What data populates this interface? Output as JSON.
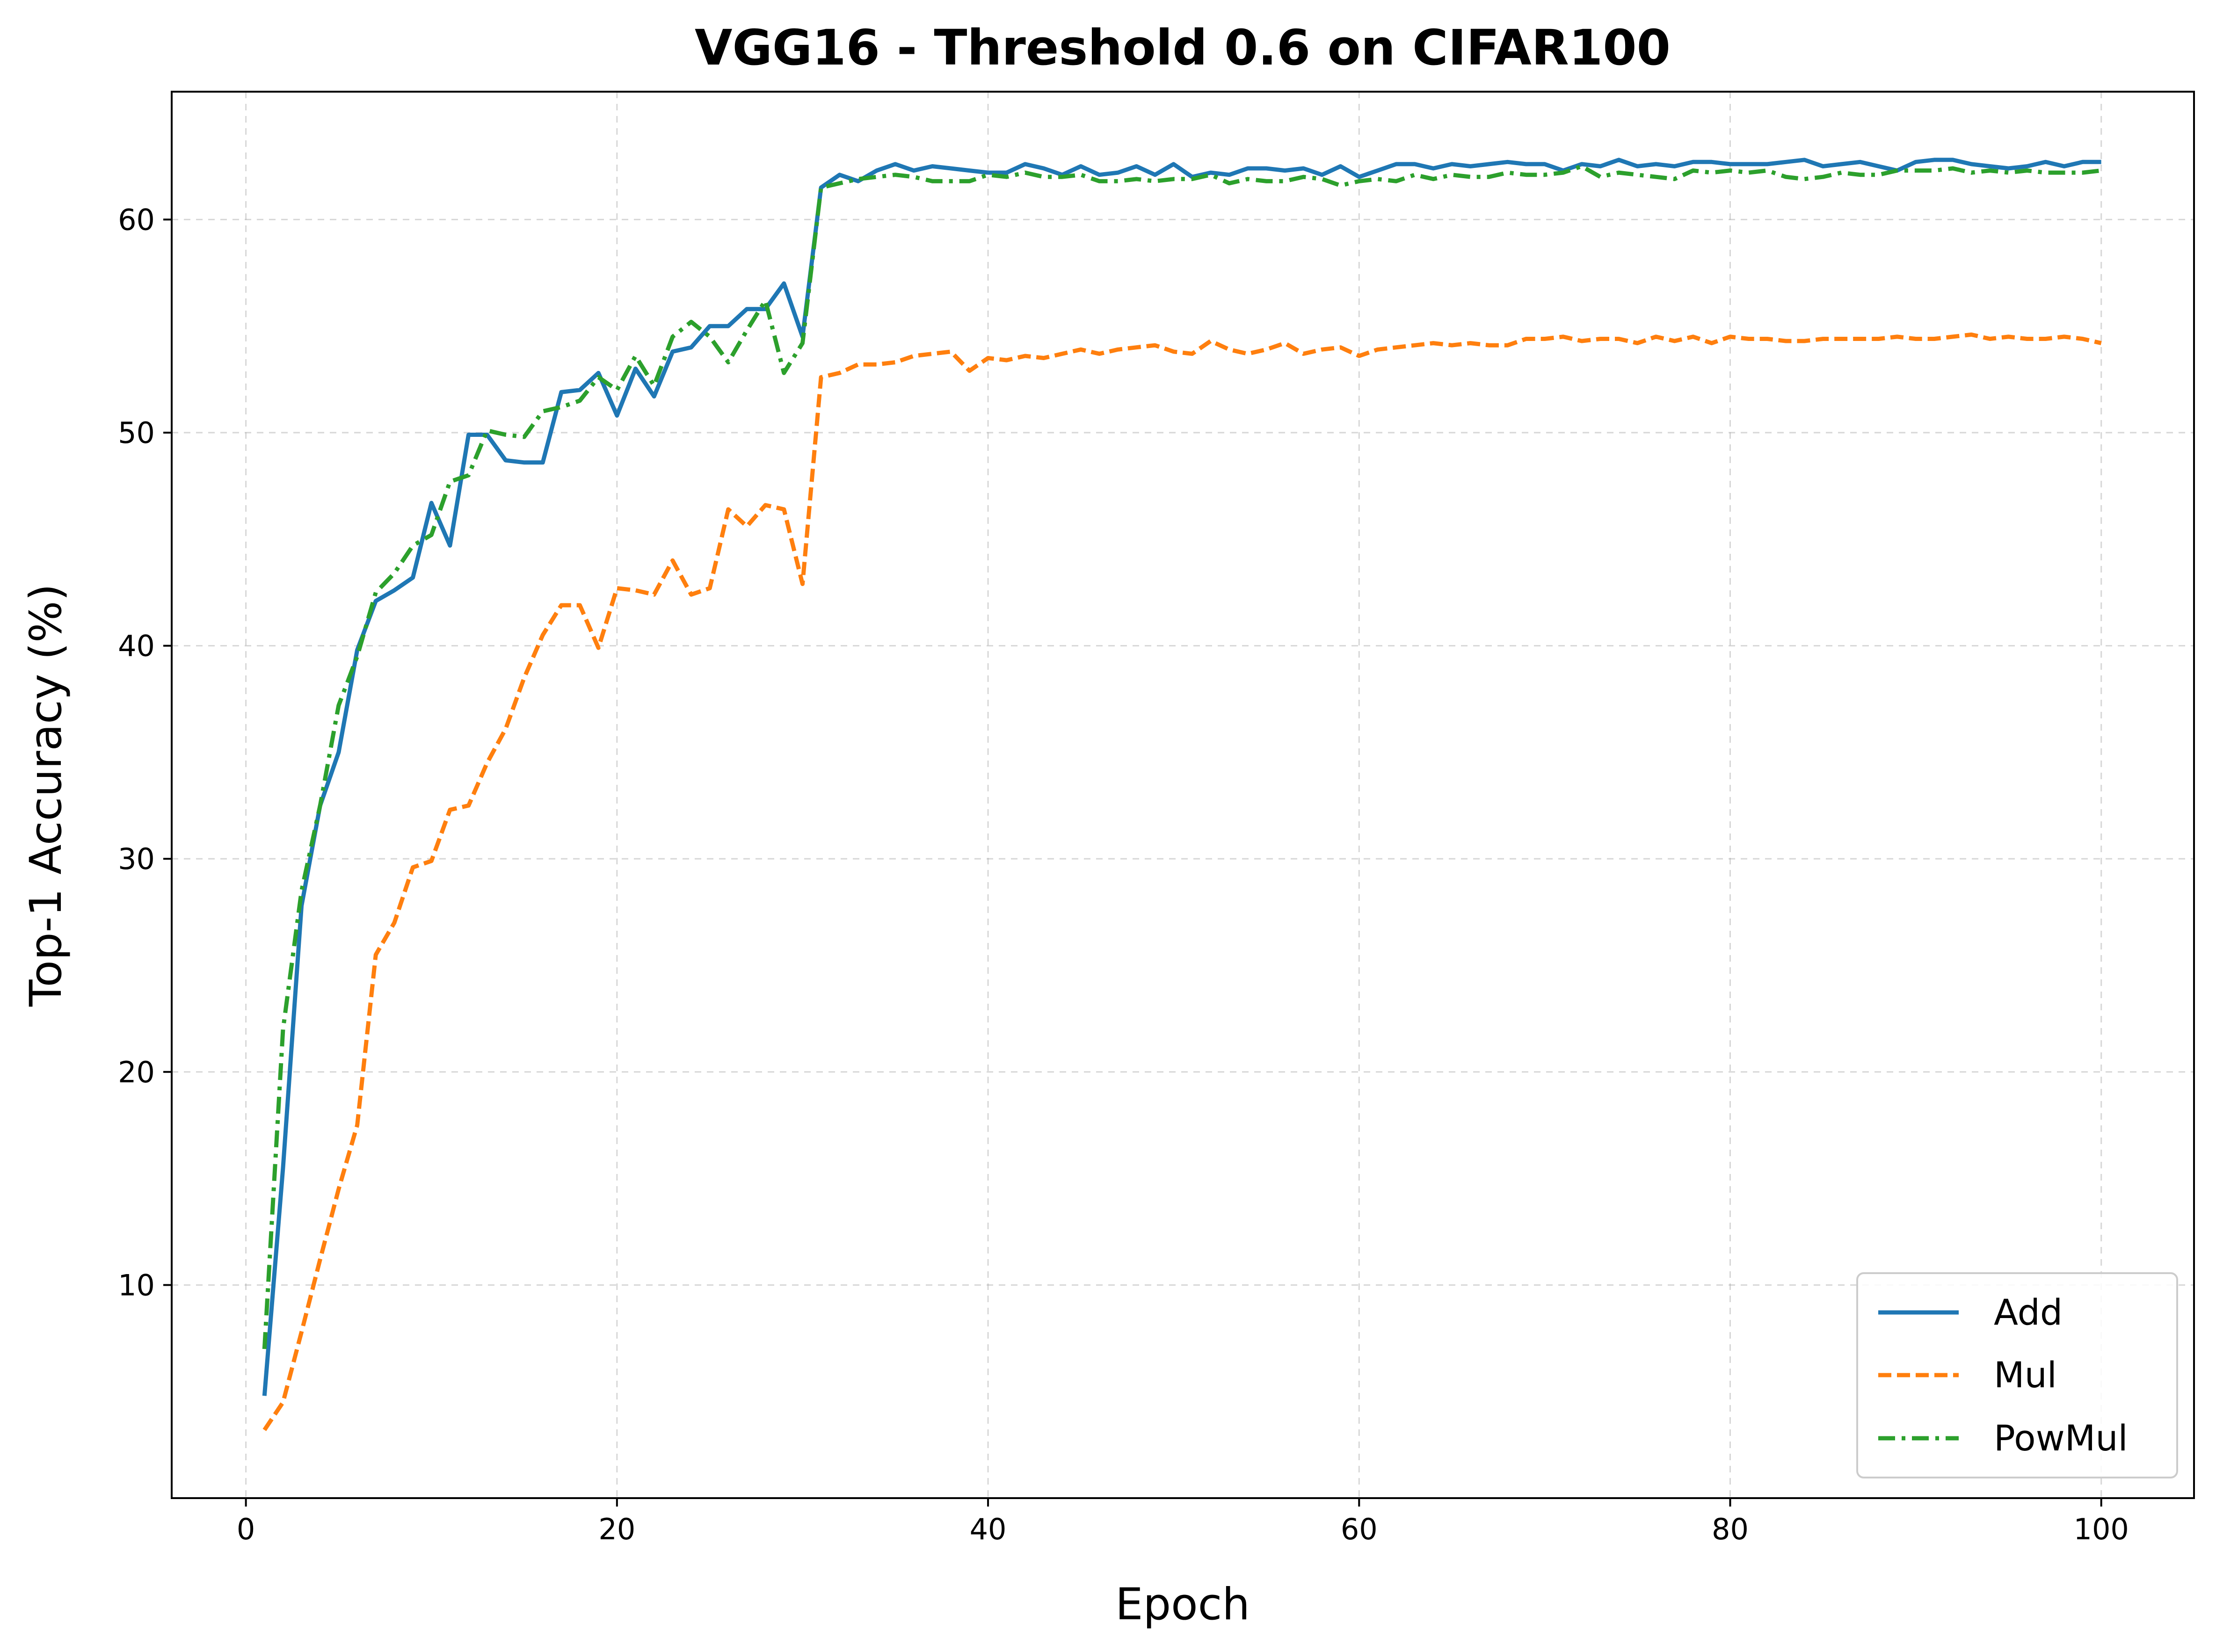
{
  "chart_data": {
    "type": "line",
    "title": "VGG16 - Threshold 0.6 on CIFAR100",
    "xlabel": "Epoch",
    "ylabel": "Top-1 Accuracy (%)",
    "xlim": [
      -4,
      105
    ],
    "ylim": [
      0,
      66
    ],
    "xticks": [
      0,
      20,
      40,
      60,
      80,
      100
    ],
    "yticks": [
      10,
      20,
      30,
      40,
      50,
      60
    ],
    "grid": true,
    "legend_position": "lower-right",
    "series": [
      {
        "name": "Add",
        "color": "#1f77b4",
        "style": "solid",
        "x": [
          1,
          2,
          3,
          4,
          5,
          6,
          7,
          8,
          9,
          10,
          11,
          12,
          13,
          14,
          15,
          16,
          17,
          18,
          19,
          20,
          21,
          22,
          23,
          24,
          25,
          26,
          27,
          28,
          29,
          30,
          31,
          32,
          33,
          34,
          35,
          36,
          37,
          38,
          39,
          40,
          41,
          42,
          43,
          44,
          45,
          46,
          47,
          48,
          49,
          50,
          51,
          52,
          53,
          54,
          55,
          56,
          57,
          58,
          59,
          60,
          61,
          62,
          63,
          64,
          65,
          66,
          67,
          68,
          69,
          70,
          71,
          72,
          73,
          74,
          75,
          76,
          77,
          78,
          79,
          80,
          81,
          82,
          83,
          84,
          85,
          86,
          87,
          88,
          89,
          90,
          91,
          92,
          93,
          94,
          95,
          96,
          97,
          98,
          99,
          100
        ],
        "values": [
          4.8,
          15.5,
          27.8,
          32.5,
          35.0,
          39.8,
          42.1,
          42.6,
          43.2,
          46.7,
          44.7,
          49.9,
          49.9,
          48.7,
          48.6,
          48.6,
          51.9,
          52.0,
          52.8,
          50.8,
          53.0,
          51.7,
          53.8,
          54.0,
          55.0,
          55.0,
          55.8,
          55.8,
          57.0,
          54.5,
          61.5,
          62.1,
          61.8,
          62.3,
          62.6,
          62.3,
          62.5,
          62.4,
          62.3,
          62.2,
          62.2,
          62.6,
          62.4,
          62.1,
          62.5,
          62.1,
          62.2,
          62.5,
          62.1,
          62.6,
          62.0,
          62.2,
          62.1,
          62.4,
          62.4,
          62.3,
          62.4,
          62.1,
          62.5,
          62.0,
          62.3,
          62.6,
          62.6,
          62.4,
          62.6,
          62.5,
          62.6,
          62.7,
          62.6,
          62.6,
          62.3,
          62.6,
          62.5,
          62.8,
          62.5,
          62.6,
          62.5,
          62.7,
          62.7,
          62.6,
          62.6,
          62.6,
          62.7,
          62.8,
          62.5,
          62.6,
          62.7,
          62.5,
          62.3,
          62.7,
          62.8,
          62.8,
          62.6,
          62.5,
          62.4,
          62.5,
          62.7,
          62.5,
          62.7,
          62.7
        ]
      },
      {
        "name": "Mul",
        "color": "#ff7f0e",
        "style": "dashed",
        "x": [
          1,
          2,
          3,
          4,
          5,
          6,
          7,
          8,
          9,
          10,
          11,
          12,
          13,
          14,
          15,
          16,
          17,
          18,
          19,
          20,
          21,
          22,
          23,
          24,
          25,
          26,
          27,
          28,
          29,
          30,
          31,
          32,
          33,
          34,
          35,
          36,
          37,
          38,
          39,
          40,
          41,
          42,
          43,
          44,
          45,
          46,
          47,
          48,
          49,
          50,
          51,
          52,
          53,
          54,
          55,
          56,
          57,
          58,
          59,
          60,
          61,
          62,
          63,
          64,
          65,
          66,
          67,
          68,
          69,
          70,
          71,
          72,
          73,
          74,
          75,
          76,
          77,
          78,
          79,
          80,
          81,
          82,
          83,
          84,
          85,
          86,
          87,
          88,
          89,
          90,
          91,
          92,
          93,
          94,
          95,
          96,
          97,
          98,
          99,
          100
        ],
        "values": [
          3.2,
          4.5,
          7.8,
          11.2,
          14.5,
          17.5,
          25.5,
          27.0,
          29.6,
          29.9,
          32.3,
          32.5,
          34.5,
          36.1,
          38.5,
          40.5,
          41.9,
          41.9,
          39.9,
          42.7,
          42.6,
          42.4,
          44.0,
          42.4,
          42.7,
          46.4,
          45.6,
          46.6,
          46.4,
          42.9,
          52.6,
          52.8,
          53.2,
          53.2,
          53.3,
          53.6,
          53.7,
          53.8,
          52.9,
          53.5,
          53.4,
          53.6,
          53.5,
          53.7,
          53.9,
          53.7,
          53.9,
          54.0,
          54.1,
          53.8,
          53.7,
          54.3,
          53.9,
          53.7,
          53.9,
          54.2,
          53.7,
          53.9,
          54.0,
          53.6,
          53.9,
          54.0,
          54.1,
          54.2,
          54.1,
          54.2,
          54.1,
          54.1,
          54.4,
          54.4,
          54.5,
          54.3,
          54.4,
          54.4,
          54.2,
          54.5,
          54.3,
          54.5,
          54.2,
          54.5,
          54.4,
          54.4,
          54.3,
          54.3,
          54.4,
          54.4,
          54.4,
          54.4,
          54.5,
          54.4,
          54.4,
          54.5,
          54.6,
          54.4,
          54.5,
          54.4,
          54.4,
          54.5,
          54.4,
          54.2
        ]
      },
      {
        "name": "PowMul",
        "color": "#2ca02c",
        "style": "dashdot",
        "x": [
          1,
          2,
          3,
          4,
          5,
          6,
          7,
          8,
          9,
          10,
          11,
          12,
          13,
          14,
          15,
          16,
          17,
          18,
          19,
          20,
          21,
          22,
          23,
          24,
          25,
          26,
          27,
          28,
          29,
          30,
          31,
          32,
          33,
          34,
          35,
          36,
          37,
          38,
          39,
          40,
          41,
          42,
          43,
          44,
          45,
          46,
          47,
          48,
          49,
          50,
          51,
          52,
          53,
          54,
          55,
          56,
          57,
          58,
          59,
          60,
          61,
          62,
          63,
          64,
          65,
          66,
          67,
          68,
          69,
          70,
          71,
          72,
          73,
          74,
          75,
          76,
          77,
          78,
          79,
          80,
          81,
          82,
          83,
          84,
          85,
          86,
          87,
          88,
          89,
          90,
          91,
          92,
          93,
          94,
          95,
          96,
          97,
          98,
          99,
          100
        ],
        "values": [
          7.0,
          22.0,
          28.5,
          32.5,
          37.2,
          39.5,
          42.5,
          43.4,
          44.7,
          45.2,
          47.7,
          48.0,
          50.1,
          49.9,
          49.8,
          51.0,
          51.2,
          51.5,
          52.6,
          52.0,
          53.6,
          52.2,
          54.5,
          55.2,
          54.5,
          53.3,
          54.8,
          56.2,
          52.8,
          54.2,
          61.5,
          61.7,
          61.9,
          62.0,
          62.1,
          62.0,
          61.8,
          61.8,
          61.8,
          62.1,
          62.0,
          62.2,
          62.0,
          62.0,
          62.1,
          61.8,
          61.8,
          61.9,
          61.8,
          61.9,
          61.9,
          62.1,
          61.7,
          61.9,
          61.8,
          61.8,
          62.0,
          61.9,
          61.6,
          61.8,
          61.9,
          61.8,
          62.1,
          61.9,
          62.1,
          62.0,
          62.0,
          62.2,
          62.1,
          62.1,
          62.2,
          62.5,
          62.0,
          62.2,
          62.1,
          62.0,
          61.9,
          62.3,
          62.2,
          62.3,
          62.2,
          62.3,
          62.0,
          61.9,
          62.0,
          62.2,
          62.1,
          62.1,
          62.3,
          62.3,
          62.3,
          62.4,
          62.2,
          62.3,
          62.2,
          62.3,
          62.2,
          62.2,
          62.2,
          62.3
        ]
      }
    ]
  }
}
